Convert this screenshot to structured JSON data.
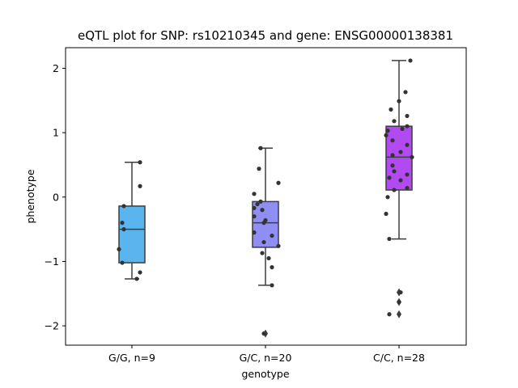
{
  "chart_data": {
    "type": "box",
    "title": "eQTL plot for SNP: rs10210345 and gene: ENSG00000138381",
    "xlabel": "genotype",
    "ylabel": "phenotype",
    "categories": [
      "G/G, n=9",
      "G/C, n=20",
      "C/C, n=28"
    ],
    "ylim": [
      -2.3,
      2.32
    ],
    "yticks": [
      -2,
      -1,
      0,
      1,
      2
    ],
    "yticklabels": [
      "−2",
      "−1",
      "0",
      "1",
      "2"
    ],
    "grid": false,
    "legend": "none",
    "colors": [
      "#5ab4ee",
      "#8f8ff3",
      "#b14af1"
    ],
    "boxes": [
      {
        "q1": -1.02,
        "median": -0.5,
        "q3": -0.14,
        "whisker_low": -1.27,
        "whisker_high": 0.54,
        "outliers": []
      },
      {
        "q1": -0.78,
        "median": -0.4,
        "q3": -0.07,
        "whisker_low": -1.37,
        "whisker_high": 0.76,
        "outliers": [
          -2.12
        ]
      },
      {
        "q1": 0.11,
        "median": 0.62,
        "q3": 1.1,
        "whisker_low": -0.65,
        "whisker_high": 2.12,
        "outliers": [
          -1.48,
          -1.63,
          -1.82
        ]
      }
    ],
    "points": [
      [
        -1.27,
        -1.17,
        -1.02,
        -0.81,
        -0.5,
        -0.4,
        -0.14,
        0.17,
        0.54
      ],
      [
        -2.12,
        -1.37,
        -1.09,
        -0.95,
        -0.87,
        -0.76,
        -0.7,
        -0.6,
        -0.55,
        -0.4,
        -0.36,
        -0.3,
        -0.2,
        -0.17,
        -0.11,
        -0.07,
        0.05,
        0.22,
        0.44,
        0.76
      ],
      [
        -1.82,
        -1.63,
        -1.48,
        -0.65,
        -0.26,
        0.0,
        0.11,
        0.14,
        0.26,
        0.3,
        0.35,
        0.4,
        0.49,
        0.62,
        0.65,
        0.7,
        0.81,
        0.88,
        0.96,
        1.03,
        1.06,
        1.1,
        1.18,
        1.26,
        1.36,
        1.49,
        1.63,
        2.12
      ]
    ]
  }
}
